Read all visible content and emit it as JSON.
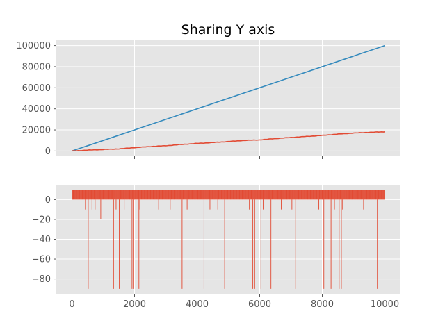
{
  "figure": {
    "title": "Sharing Y axis",
    "background": "#ffffff",
    "axes_facecolor": "#e5e5e5",
    "grid_color": "#ffffff",
    "tick_color": "#555555"
  },
  "chart_data": [
    {
      "type": "line",
      "title": "Sharing Y axis",
      "xlabel": "",
      "ylabel": "",
      "xlim": [
        -500,
        10500
      ],
      "ylim": [
        -5000,
        105000
      ],
      "xticks": [
        0,
        2000,
        4000,
        6000,
        8000,
        10000
      ],
      "yticks": [
        0,
        20000,
        40000,
        60000,
        80000,
        100000
      ],
      "ytick_labels": [
        "0",
        "20000",
        "40000",
        "60000",
        "80000",
        "100000"
      ],
      "show_xtick_labels": false,
      "grid": true,
      "series": [
        {
          "color": "#348abd",
          "x": [
            0,
            10000
          ],
          "y": [
            0,
            100000
          ]
        },
        {
          "color": "#e24a33",
          "x": [
            0,
            500,
            1000,
            1500,
            2000,
            2500,
            3000,
            3500,
            4000,
            4500,
            5000,
            5500,
            6000,
            6500,
            7000,
            7500,
            8000,
            8500,
            9000,
            9500,
            10000
          ],
          "y": [
            0,
            800,
            1400,
            2000,
            3200,
            4200,
            5000,
            6200,
            7200,
            8000,
            9000,
            10000,
            10500,
            11800,
            12800,
            13800,
            14800,
            16000,
            17000,
            17700,
            18200
          ]
        }
      ]
    },
    {
      "type": "bar",
      "xlim": [
        -500,
        10500
      ],
      "ylim": [
        -95,
        15
      ],
      "xticks": [
        0,
        2000,
        4000,
        6000,
        8000,
        10000
      ],
      "xtick_labels": [
        "0",
        "2000",
        "4000",
        "6000",
        "8000",
        "10000"
      ],
      "yticks": [
        -80,
        -60,
        -40,
        -20,
        0
      ],
      "ytick_labels": [
        "−80",
        "−60",
        "−40",
        "−20",
        "0"
      ],
      "grid": true,
      "color": "#e24a33",
      "note_values": "step values: +10 (most steps) or -10/-90 (downward spikes)",
      "x_range": [
        0,
        10000
      ],
      "positive_value": 10,
      "spikes_minus_90": [
        520,
        1330,
        1510,
        1920,
        1960,
        2140,
        3520,
        4220,
        4880,
        5780,
        5840,
        6040,
        6360,
        7150,
        8050,
        8280,
        8540,
        8610,
        9760
      ],
      "spikes_minus_10": [
        430,
        640,
        740,
        1410,
        1670,
        2170,
        2770,
        3140,
        3680,
        4000,
        4410,
        4660,
        5670,
        6110,
        6690,
        7030,
        7890,
        8390,
        8650,
        9320
      ],
      "spikes_minus_20": [
        920
      ]
    }
  ]
}
